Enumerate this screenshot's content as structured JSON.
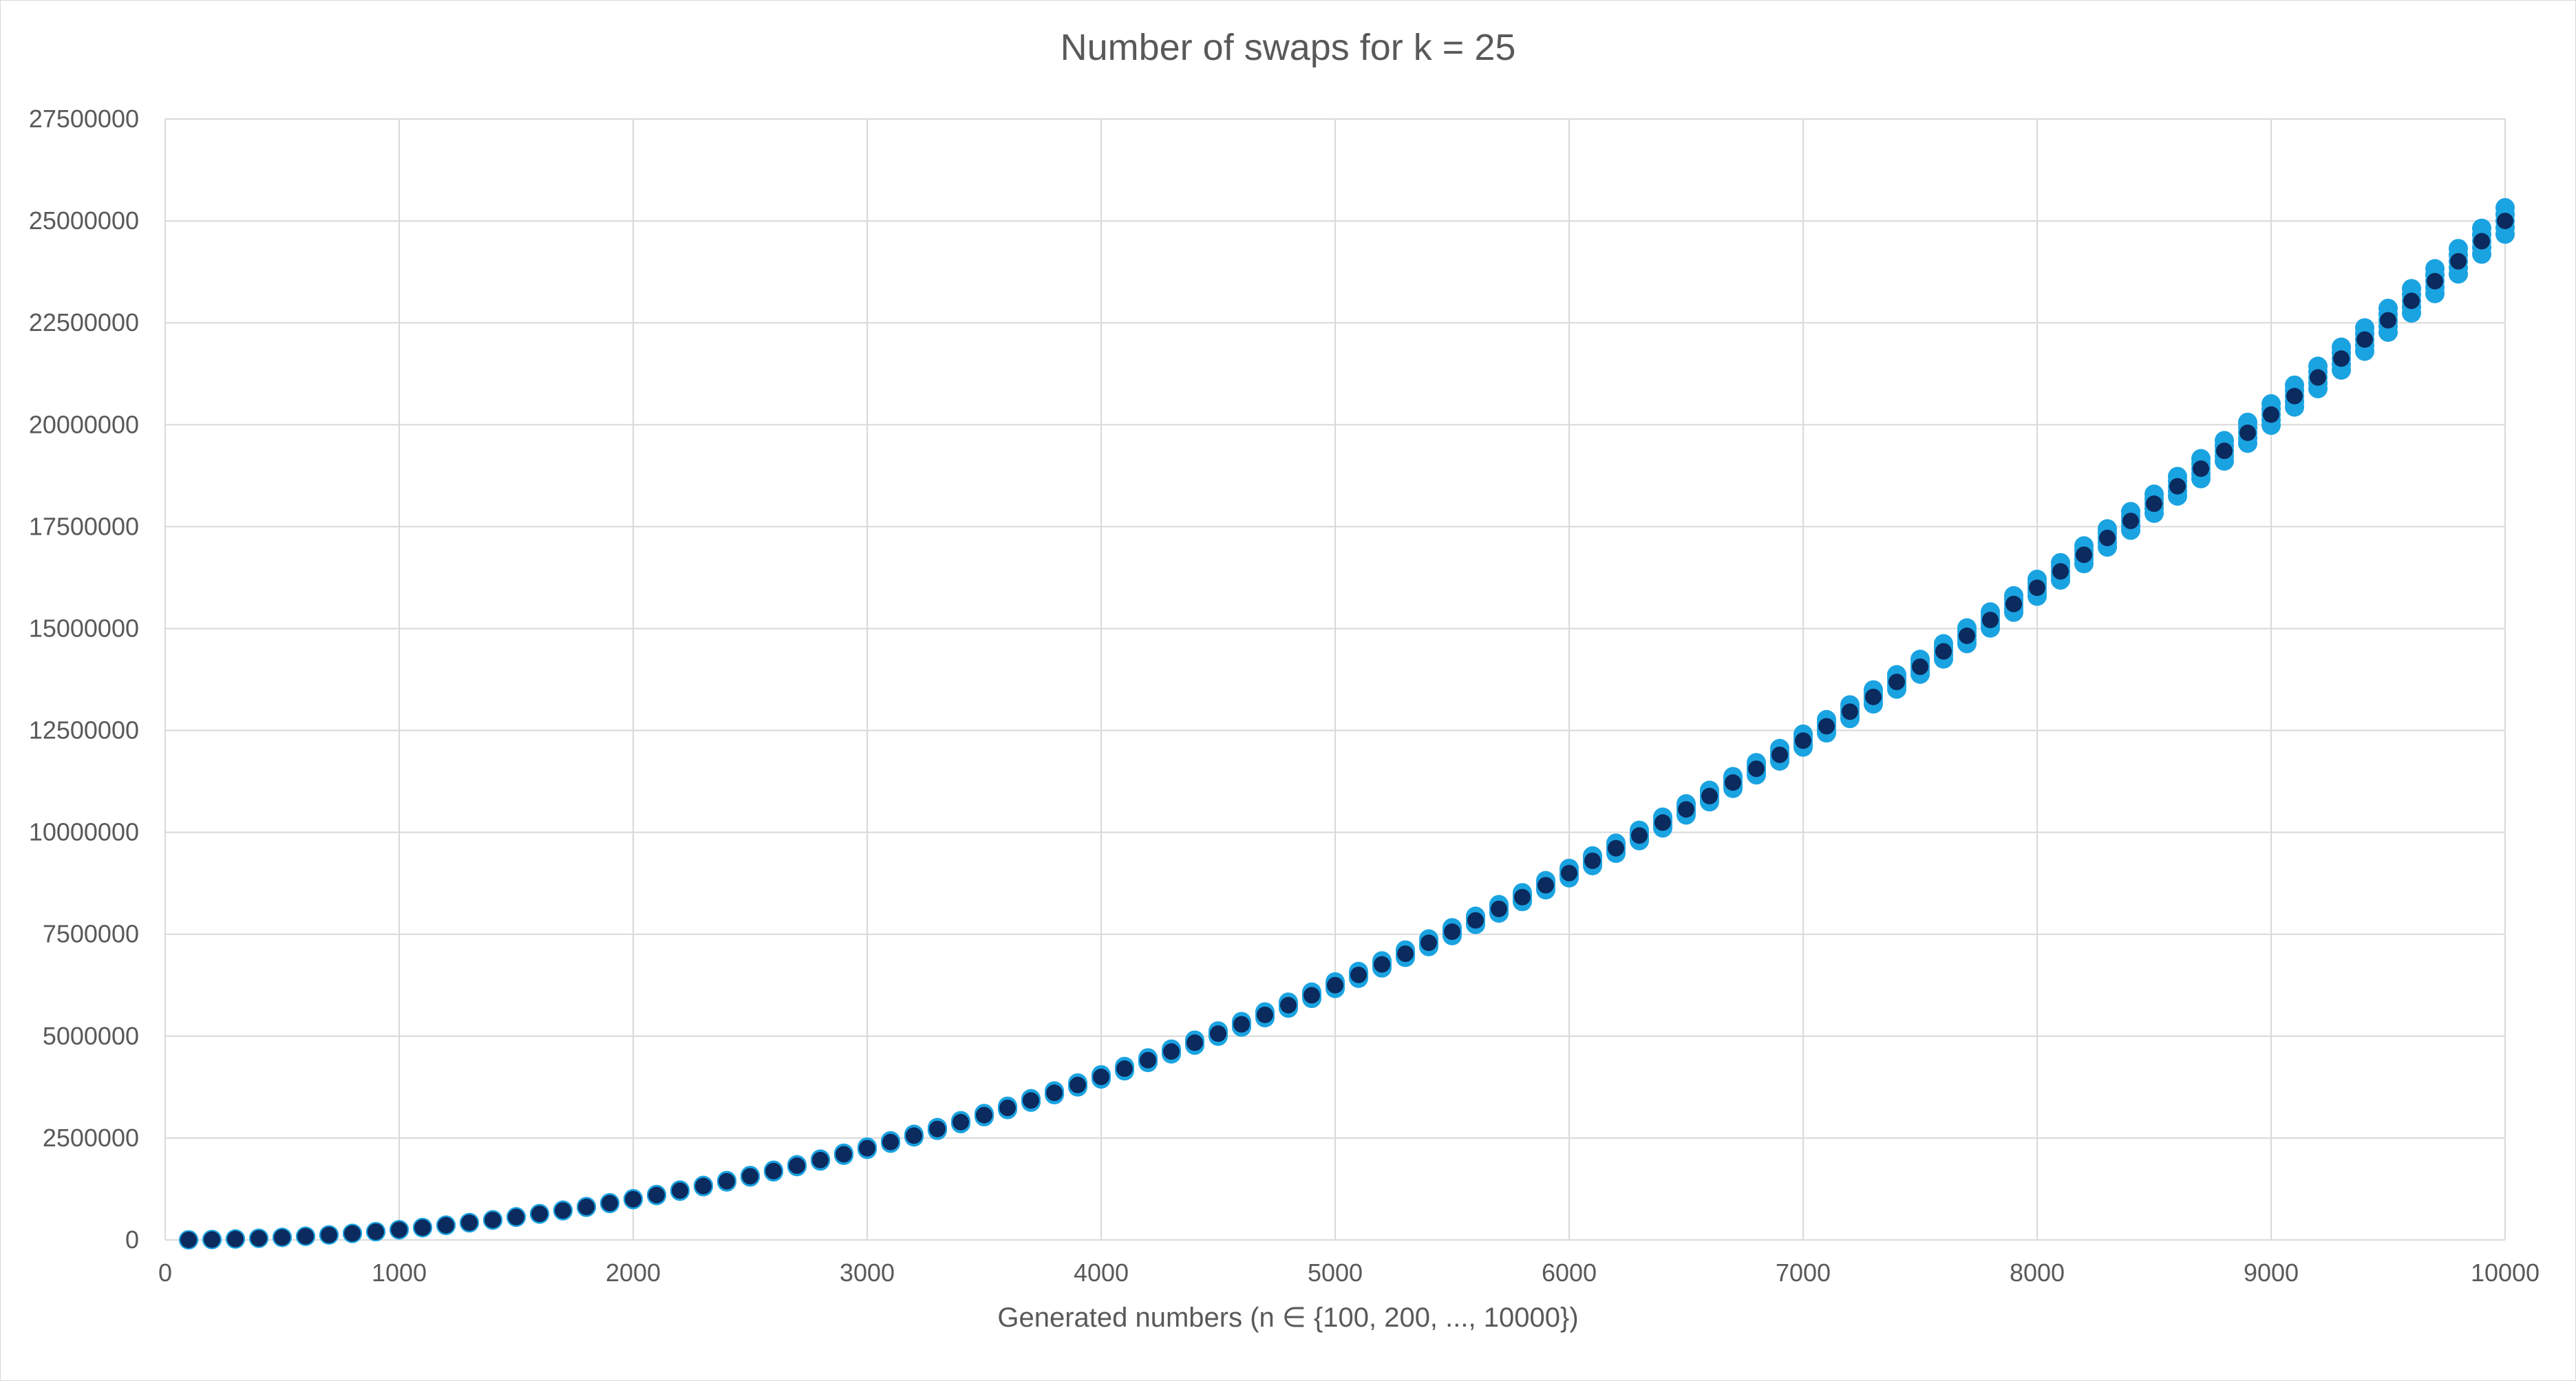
{
  "chart_data": {
    "type": "scatter",
    "title": "Number of swaps for k = 25",
    "xlabel": "Generated numbers (n ∈ {100, 200, ..., 10000})",
    "ylabel": "",
    "xlim": [
      0,
      10000
    ],
    "ylim": [
      0,
      27500000
    ],
    "x_ticks": [
      "0",
      "1000",
      "2000",
      "3000",
      "4000",
      "5000",
      "6000",
      "7000",
      "8000",
      "9000",
      "10000"
    ],
    "y_ticks": [
      "0",
      "2500000",
      "5000000",
      "7500000",
      "10000000",
      "12500000",
      "15000000",
      "17500000",
      "20000000",
      "22500000",
      "25000000",
      "27500000"
    ],
    "grid": true,
    "legend": "none",
    "n_values": "100, 200, ..., 10000 (step 100)",
    "mean_model": "y ≈ 0.25 · n²",
    "spread_model": "light-blue runs spread about ±1.3% around the mean",
    "series": [
      {
        "color": "#1AA3E1",
        "role": "individual runs",
        "value_formula": "y = 0.25 · n² · (1 + δ), δ ∈ [-0.013, +0.013]"
      },
      {
        "color": "#0B2A5E",
        "role": "average",
        "value_formula": "y = 0.25 · n²"
      }
    ],
    "sample_points": [
      {
        "x": 1000,
        "y": 250000
      },
      {
        "x": 2000,
        "y": 1000000
      },
      {
        "x": 3000,
        "y": 2250000
      },
      {
        "x": 4000,
        "y": 4000000
      },
      {
        "x": 5000,
        "y": 6250000
      },
      {
        "x": 6000,
        "y": 9000000
      },
      {
        "x": 7000,
        "y": 12250000
      },
      {
        "x": 8000,
        "y": 16000000
      },
      {
        "x": 9000,
        "y": 20250000
      },
      {
        "x": 10000,
        "y": 25000000
      }
    ]
  }
}
